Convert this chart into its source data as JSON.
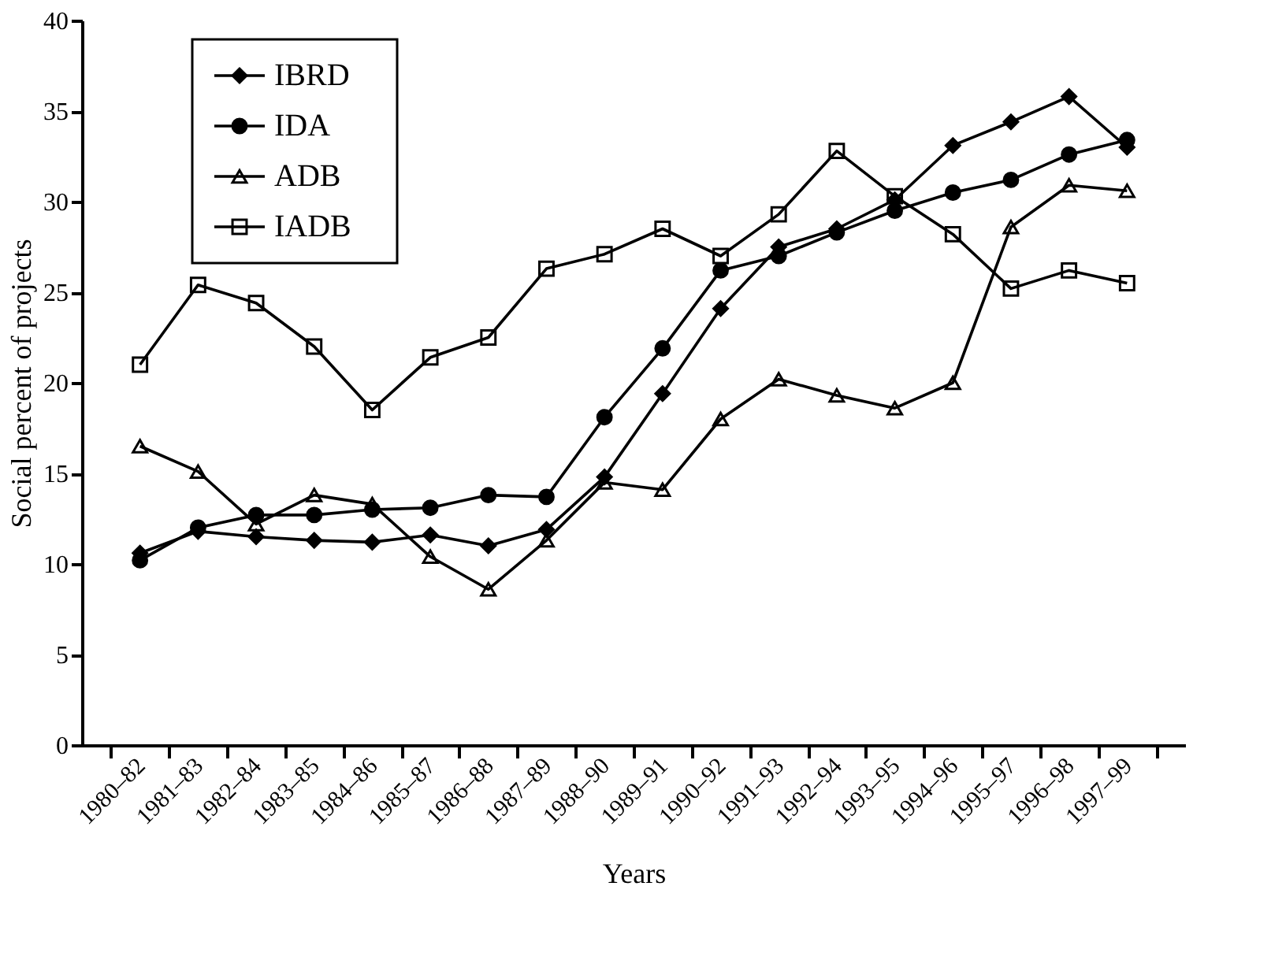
{
  "chart_data": {
    "type": "line",
    "xlabel": "Years",
    "ylabel": "Social percent of projects",
    "categories": [
      "1980–82",
      "1981–83",
      "1982–84",
      "1983–85",
      "1984–86",
      "1985–87",
      "1986–88",
      "1987–89",
      "1988–90",
      "1989–91",
      "1990–92",
      "1991–93",
      "1992–94",
      "1993–95",
      "1994–96",
      "1995–97",
      "1996–98",
      "1997–99"
    ],
    "series": [
      {
        "name": "IBRD",
        "color": "#000000",
        "marker": "diamond",
        "values": [
          10.6,
          11.8,
          11.5,
          11.3,
          11.2,
          11.6,
          11.0,
          11.9,
          14.8,
          19.4,
          24.1,
          27.5,
          28.5,
          30.1,
          33.1,
          34.4,
          35.8,
          33.0
        ]
      },
      {
        "name": "IDA",
        "color": "#000000",
        "marker": "circle",
        "values": [
          10.2,
          12.0,
          12.7,
          12.7,
          13.0,
          13.1,
          13.8,
          13.7,
          18.1,
          21.9,
          26.2,
          27.0,
          28.3,
          29.5,
          30.5,
          31.2,
          32.6,
          33.4
        ]
      },
      {
        "name": "ADB",
        "color": "#000000",
        "marker": "triangle",
        "values": [
          16.5,
          15.1,
          12.2,
          13.8,
          13.3,
          10.4,
          8.6,
          11.3,
          14.5,
          14.1,
          18.0,
          20.2,
          19.3,
          18.6,
          20.0,
          28.6,
          30.9,
          30.6
        ]
      },
      {
        "name": "IADB",
        "color": "#000000",
        "marker": "square",
        "values": [
          21.0,
          25.4,
          24.4,
          22.0,
          18.5,
          21.4,
          22.5,
          26.3,
          27.1,
          28.5,
          27.0,
          29.3,
          32.8,
          30.3,
          28.2,
          25.2,
          26.2,
          25.5
        ]
      }
    ],
    "ylim": [
      0,
      40
    ],
    "yticks": [
      0,
      5,
      10,
      15,
      20,
      25,
      30,
      35,
      40
    ],
    "grid": false,
    "legend": "top left",
    "line_style": "solid"
  }
}
